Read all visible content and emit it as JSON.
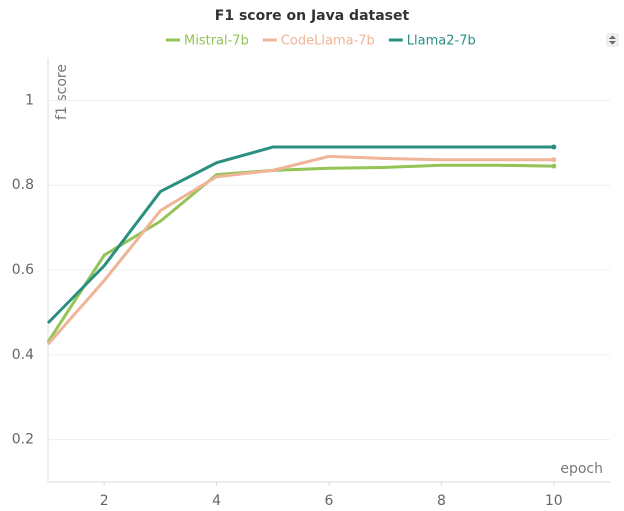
{
  "chart_data": {
    "type": "line",
    "title": "F1 score on Java dataset",
    "x": [
      1,
      2,
      3,
      4,
      5,
      6,
      7,
      8,
      9,
      10
    ],
    "series": [
      {
        "name": "Mistral-7b",
        "color": "#94c356",
        "values": [
          0.43,
          0.635,
          0.715,
          0.825,
          0.835,
          0.84,
          0.842,
          0.847,
          0.847,
          0.845
        ]
      },
      {
        "name": "CodeLlama-7b",
        "color": "#f0b498",
        "values": [
          0.425,
          0.575,
          0.74,
          0.82,
          0.835,
          0.868,
          0.863,
          0.86,
          0.86,
          0.86
        ]
      },
      {
        "name": "Llama2-7b",
        "color": "#2a8f80",
        "values": [
          0.475,
          0.61,
          0.785,
          0.853,
          0.89,
          0.89,
          0.89,
          0.89,
          0.89,
          0.89
        ]
      }
    ],
    "x_label": "epoch",
    "y_label": "f1 score",
    "xlim": [
      1,
      11
    ],
    "ylim": [
      0.1,
      1.1
    ],
    "xticks": [
      2,
      4,
      6,
      8,
      10
    ],
    "yticks": [
      0.2,
      0.4,
      0.6,
      0.8,
      1
    ],
    "grid": true,
    "legend": "top"
  }
}
